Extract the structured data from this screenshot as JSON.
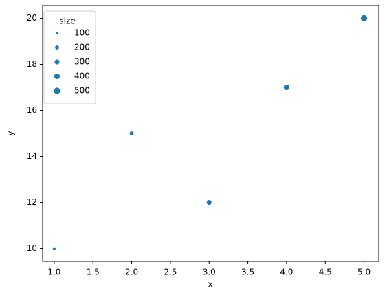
{
  "chart_data": {
    "type": "scatter",
    "x_label": "x",
    "y_label": "y",
    "series": [
      {
        "color": "#1f77b4",
        "x": [
          1,
          2,
          3,
          4,
          5
        ],
        "values": [
          10,
          15,
          12,
          17,
          20
        ],
        "sizes": [
          100,
          200,
          300,
          400,
          500
        ]
      }
    ],
    "xlim": [
      0.85,
      5.19
    ],
    "ylim": [
      9.45,
      20.55
    ],
    "xticks": [
      {
        "value": 1,
        "label": "1.0"
      },
      1.5,
      {
        "value": 2,
        "label": "2.0"
      },
      2.5,
      {
        "value": 3,
        "label": "3.0"
      },
      3.5,
      {
        "value": 4,
        "label": "4.0"
      },
      4.5,
      {
        "value": 5,
        "label": "5.0"
      }
    ],
    "yticks": [
      10,
      12,
      14,
      16,
      18,
      20
    ],
    "legend": {
      "title": "size",
      "entries": [
        100,
        200,
        300,
        400,
        500
      ],
      "position": "upper left"
    }
  }
}
